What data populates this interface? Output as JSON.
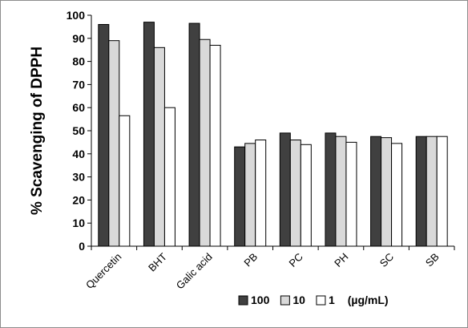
{
  "chart_data": {
    "type": "bar",
    "title": "",
    "xlabel": "",
    "ylabel": "% Scavenging of  DPPH",
    "ylim": [
      0,
      100
    ],
    "yticks": [
      0,
      10,
      20,
      30,
      40,
      50,
      60,
      70,
      80,
      90,
      100
    ],
    "grid": false,
    "legend_position": "bottom",
    "legend_unit": "(µg/mL)",
    "categories": [
      "Quercetin",
      "BHT",
      "Galic acid",
      "PB",
      "PC",
      "PH",
      "SC",
      "SB"
    ],
    "series": [
      {
        "name": "100",
        "color": "#404040",
        "values": [
          96,
          97,
          96.5,
          43,
          49,
          49,
          47.5,
          47.5
        ]
      },
      {
        "name": "10",
        "color": "#d9d9d9",
        "values": [
          89,
          86,
          89.5,
          44.5,
          46,
          47.5,
          47,
          47.5
        ]
      },
      {
        "name": "1",
        "color": "#ffffff",
        "values": [
          56.5,
          60,
          87,
          46,
          44,
          45,
          44.5,
          47.5
        ]
      }
    ]
  }
}
